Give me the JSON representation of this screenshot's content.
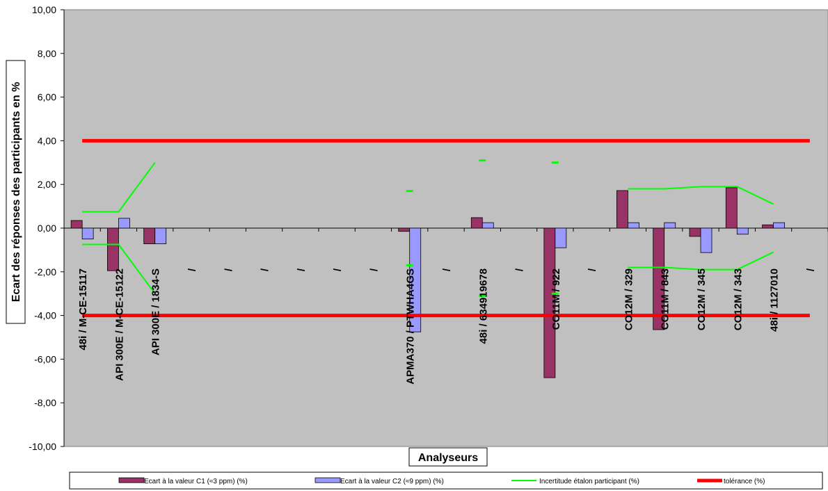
{
  "chart_data": {
    "type": "bar",
    "ylabel": "Ecart des réponses des participants en %",
    "xlabel": "Analyseurs",
    "ylim": [
      -10,
      10
    ],
    "y_ticks": [
      "10,00",
      "8,00",
      "6,00",
      "4,00",
      "2,00",
      "0,00",
      "-2,00",
      "-4,00",
      "-6,00",
      "-8,00",
      "-10,00"
    ],
    "y_tick_values": [
      10,
      8,
      6,
      4,
      2,
      0,
      -2,
      -4,
      -6,
      -8,
      -10
    ],
    "grid": false,
    "legend_position": "bottom",
    "categories": [
      "48i / M-CE-15117",
      "API 300E / M-CE-15122",
      "API 300E / 1834-S",
      "/",
      "/",
      "/",
      "/",
      "/",
      "/",
      "APMA370 / PTWHA4GS",
      "/",
      "48i / 634919678",
      "/",
      "CO11M / 922",
      "/",
      "CO12M / 329",
      "CO11M / 843",
      "CO12M / 345",
      "CO12M / 343",
      "48i / 1127010",
      "/"
    ],
    "series": [
      {
        "name": "Ecart à la valeur C1 (≈3 ppm) (%)",
        "type": "bar",
        "color": "#993366",
        "values": [
          0.35,
          -1.95,
          -0.72,
          null,
          null,
          null,
          null,
          null,
          null,
          -0.15,
          null,
          0.48,
          null,
          -6.85,
          null,
          1.72,
          -4.65,
          -0.38,
          1.85,
          0.15,
          null
        ]
      },
      {
        "name": "Ecart à la valeur C2 (≈9 ppm) (%)",
        "type": "bar",
        "color": "#9999ff",
        "values": [
          -0.5,
          0.45,
          -0.72,
          null,
          null,
          null,
          null,
          null,
          null,
          -4.75,
          null,
          0.25,
          null,
          -0.9,
          null,
          0.25,
          0.25,
          -1.12,
          -0.28,
          0.25,
          null
        ]
      },
      {
        "name": "Incertitude étalon participant  (%)",
        "type": "line",
        "color": "#00ff00",
        "values": [
          0.75,
          0.75,
          3.0,
          null,
          null,
          null,
          null,
          null,
          null,
          1.7,
          null,
          3.1,
          null,
          3.0,
          null,
          1.8,
          1.8,
          1.9,
          1.9,
          1.1,
          null
        ],
        "lower_values": [
          -0.75,
          -0.75,
          -3.0,
          null,
          null,
          null,
          null,
          null,
          null,
          -1.7,
          null,
          -3.1,
          null,
          -3.0,
          null,
          -1.8,
          -1.8,
          -1.9,
          -1.9,
          -1.1,
          null
        ]
      },
      {
        "name": "tolérance (%)",
        "type": "line",
        "color": "#ff0000",
        "values": [
          4,
          4,
          4,
          4,
          4,
          4,
          4,
          4,
          4,
          4,
          4,
          4,
          4,
          4,
          4,
          4,
          4,
          4,
          4,
          4,
          4
        ],
        "lower_values": [
          -4,
          -4,
          -4,
          -4,
          -4,
          -4,
          -4,
          -4,
          -4,
          -4,
          -4,
          -4,
          -4,
          -4,
          -4,
          -4,
          -4,
          -4,
          -4,
          -4,
          -4
        ]
      }
    ],
    "colors": {
      "plot_background": "#c0c0c0",
      "axis": "#000000"
    }
  }
}
